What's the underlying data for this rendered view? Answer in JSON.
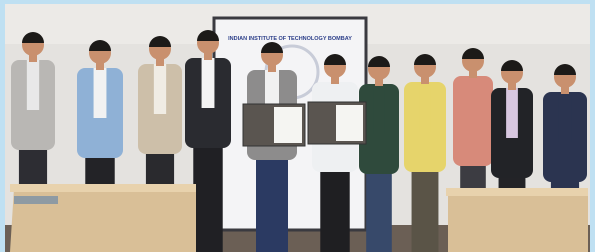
{
  "screen": {
    "text": "INDIAN INSTITUTE OF TECHNOLOGY BOMBAY"
  }
}
